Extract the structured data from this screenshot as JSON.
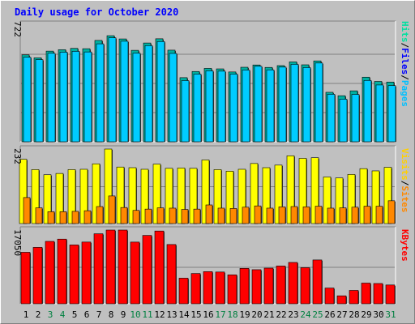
{
  "title": "Daily usage for October 2020",
  "colors": {
    "background": "#c0c0c0",
    "title": "#0000ff",
    "hits": "#00e0a0",
    "files": "#00ccff",
    "pages": "#00c0ff",
    "visits": "#ffff00",
    "sites": "#ff8800",
    "kbytes": "#ff0000",
    "weekend_day": "#008040",
    "weekday": "#000000"
  },
  "chart_data": [
    {
      "type": "bar",
      "name": "hits-files-pages",
      "ymax_label": "722",
      "ylim": [
        0,
        722
      ],
      "legend": {
        "pages": "Pages",
        "sep1": "/",
        "files": "Files",
        "sep2": "/",
        "hits": "Hits"
      },
      "x": [
        "1",
        "2",
        "3",
        "4",
        "5",
        "6",
        "7",
        "8",
        "9",
        "10",
        "11",
        "12",
        "13",
        "14",
        "15",
        "16",
        "17",
        "18",
        "19",
        "20",
        "21",
        "22",
        "23",
        "24",
        "25",
        "26",
        "27",
        "28",
        "29",
        "30",
        "31"
      ],
      "weekend": [
        false,
        false,
        true,
        true,
        false,
        false,
        false,
        false,
        false,
        true,
        true,
        false,
        false,
        false,
        false,
        false,
        true,
        true,
        false,
        false,
        false,
        false,
        false,
        true,
        true,
        false,
        false,
        false,
        false,
        false,
        true
      ],
      "series": [
        {
          "name": "Hits",
          "values": [
            534,
            516,
            557,
            566,
            574,
            572,
            623,
            652,
            632,
            562,
            607,
            633,
            563,
            394,
            432,
            451,
            448,
            429,
            458,
            472,
            457,
            468,
            491,
            473,
            497,
            304,
            283,
            313,
            397,
            371,
            367
          ]
        },
        {
          "name": "Files",
          "values": [
            520,
            505,
            544,
            551,
            556,
            552,
            602,
            639,
            618,
            545,
            591,
            616,
            543,
            376,
            416,
            436,
            434,
            416,
            441,
            464,
            442,
            459,
            476,
            456,
            484,
            292,
            262,
            291,
            377,
            349,
            345
          ]
        }
      ]
    },
    {
      "type": "bar",
      "name": "visits-sites",
      "ymax_label": "232",
      "ylim": [
        0,
        232
      ],
      "legend": {
        "sites": "Sites",
        "sep": "/",
        "visits": "Visits"
      },
      "series": [
        {
          "name": "Visits",
          "values": [
            200,
            168,
            152,
            156,
            168,
            169,
            186,
            232,
            176,
            174,
            169,
            185,
            172,
            173,
            172,
            198,
            168,
            163,
            169,
            187,
            174,
            182,
            211,
            203,
            205,
            145,
            142,
            153,
            171,
            164,
            175
          ]
        },
        {
          "name": "Sites",
          "values": [
            81,
            49,
            37,
            37,
            38,
            40,
            53,
            86,
            50,
            41,
            45,
            49,
            48,
            44,
            45,
            58,
            48,
            47,
            51,
            55,
            48,
            52,
            53,
            52,
            54,
            48,
            49,
            51,
            54,
            54,
            71
          ]
        }
      ]
    },
    {
      "type": "bar",
      "name": "kbytes",
      "ymax_label": "17050",
      "ylim": [
        0,
        17050
      ],
      "legend": {
        "kbytes": "KBytes"
      },
      "series": [
        {
          "name": "KBytes",
          "values": [
            11905,
            13047,
            14429,
            14948,
            13611,
            14271,
            16186,
            17050,
            17050,
            14264,
            15808,
            16826,
            13701,
            5921,
            6997,
            7427,
            7342,
            6690,
            8182,
            7881,
            8243,
            8736,
            9559,
            8350,
            10134,
            3638,
            1836,
            3092,
            4781,
            4686,
            4343
          ]
        }
      ]
    }
  ]
}
